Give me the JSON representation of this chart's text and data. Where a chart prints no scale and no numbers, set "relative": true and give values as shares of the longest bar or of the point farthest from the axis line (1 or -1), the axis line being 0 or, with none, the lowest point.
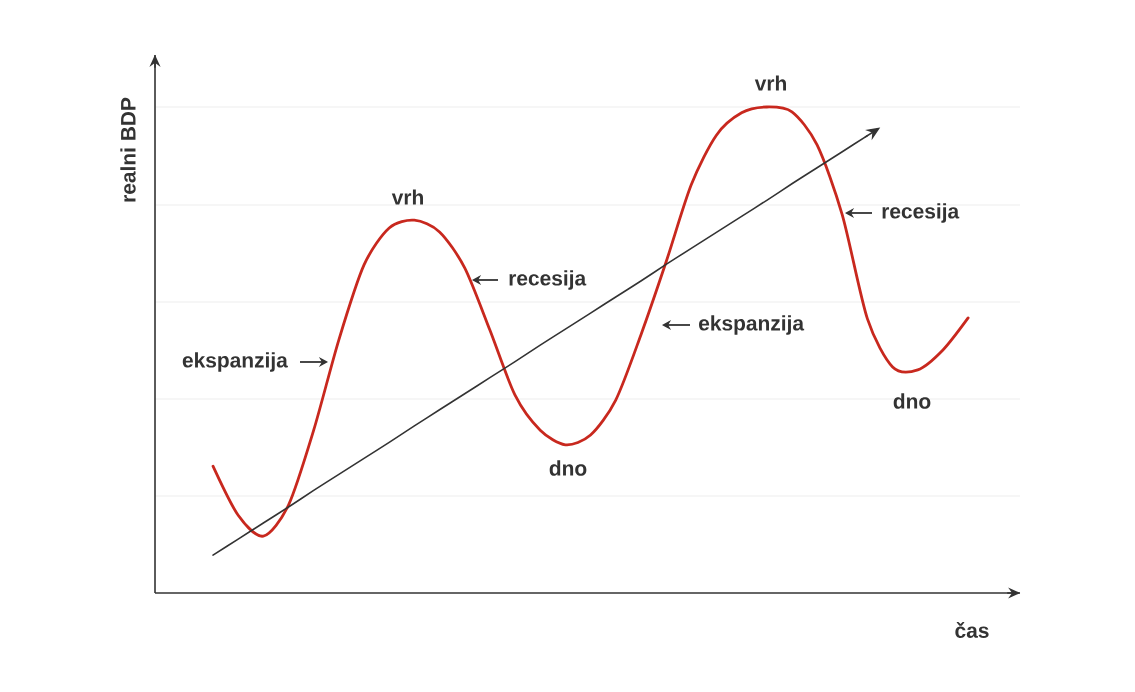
{
  "chart_data": {
    "type": "line",
    "relative": true,
    "xlabel": "čas",
    "ylabel": "realni BDP",
    "grid": "y",
    "marker": "none",
    "categories": [
      null,
      null,
      null,
      null,
      null,
      null,
      null,
      null,
      null,
      null,
      null,
      null,
      null,
      null,
      null,
      null,
      null,
      null,
      null,
      null,
      null,
      null,
      null,
      null,
      null,
      null,
      null,
      null,
      null,
      null,
      null
    ],
    "series": [
      {
        "color": "#c8281e",
        "values": [
          0.261,
          0.16,
          0.117,
          0.181,
          0.335,
          0.521,
          0.675,
          0.751,
          0.767,
          0.743,
          0.669,
          0.541,
          0.407,
          0.335,
          0.305,
          0.325,
          0.397,
          0.531,
          0.681,
          0.84,
          0.942,
          0.988,
          1.0,
          0.99,
          0.922,
          0.778,
          0.564,
          0.465,
          0.459,
          0.5,
          0.566
        ]
      },
      {
        "type": "line",
        "color": "#333333",
        "values": [
          0.078,
          0.111,
          0.144,
          0.177,
          0.211,
          0.244,
          0.277,
          0.31,
          0.344,
          0.377,
          0.41,
          0.443,
          0.476,
          0.51,
          0.543,
          0.576,
          0.609,
          0.642,
          0.676,
          0.709,
          0.742,
          0.775,
          0.808,
          0.842,
          0.875,
          0.908,
          0.941,
          null,
          null,
          null,
          null
        ]
      }
    ],
    "annotations": [
      "ekspanzija",
      "vrh",
      "recesija",
      "dno",
      "ekspanzija",
      "vrh",
      "recesija",
      "dno"
    ]
  }
}
